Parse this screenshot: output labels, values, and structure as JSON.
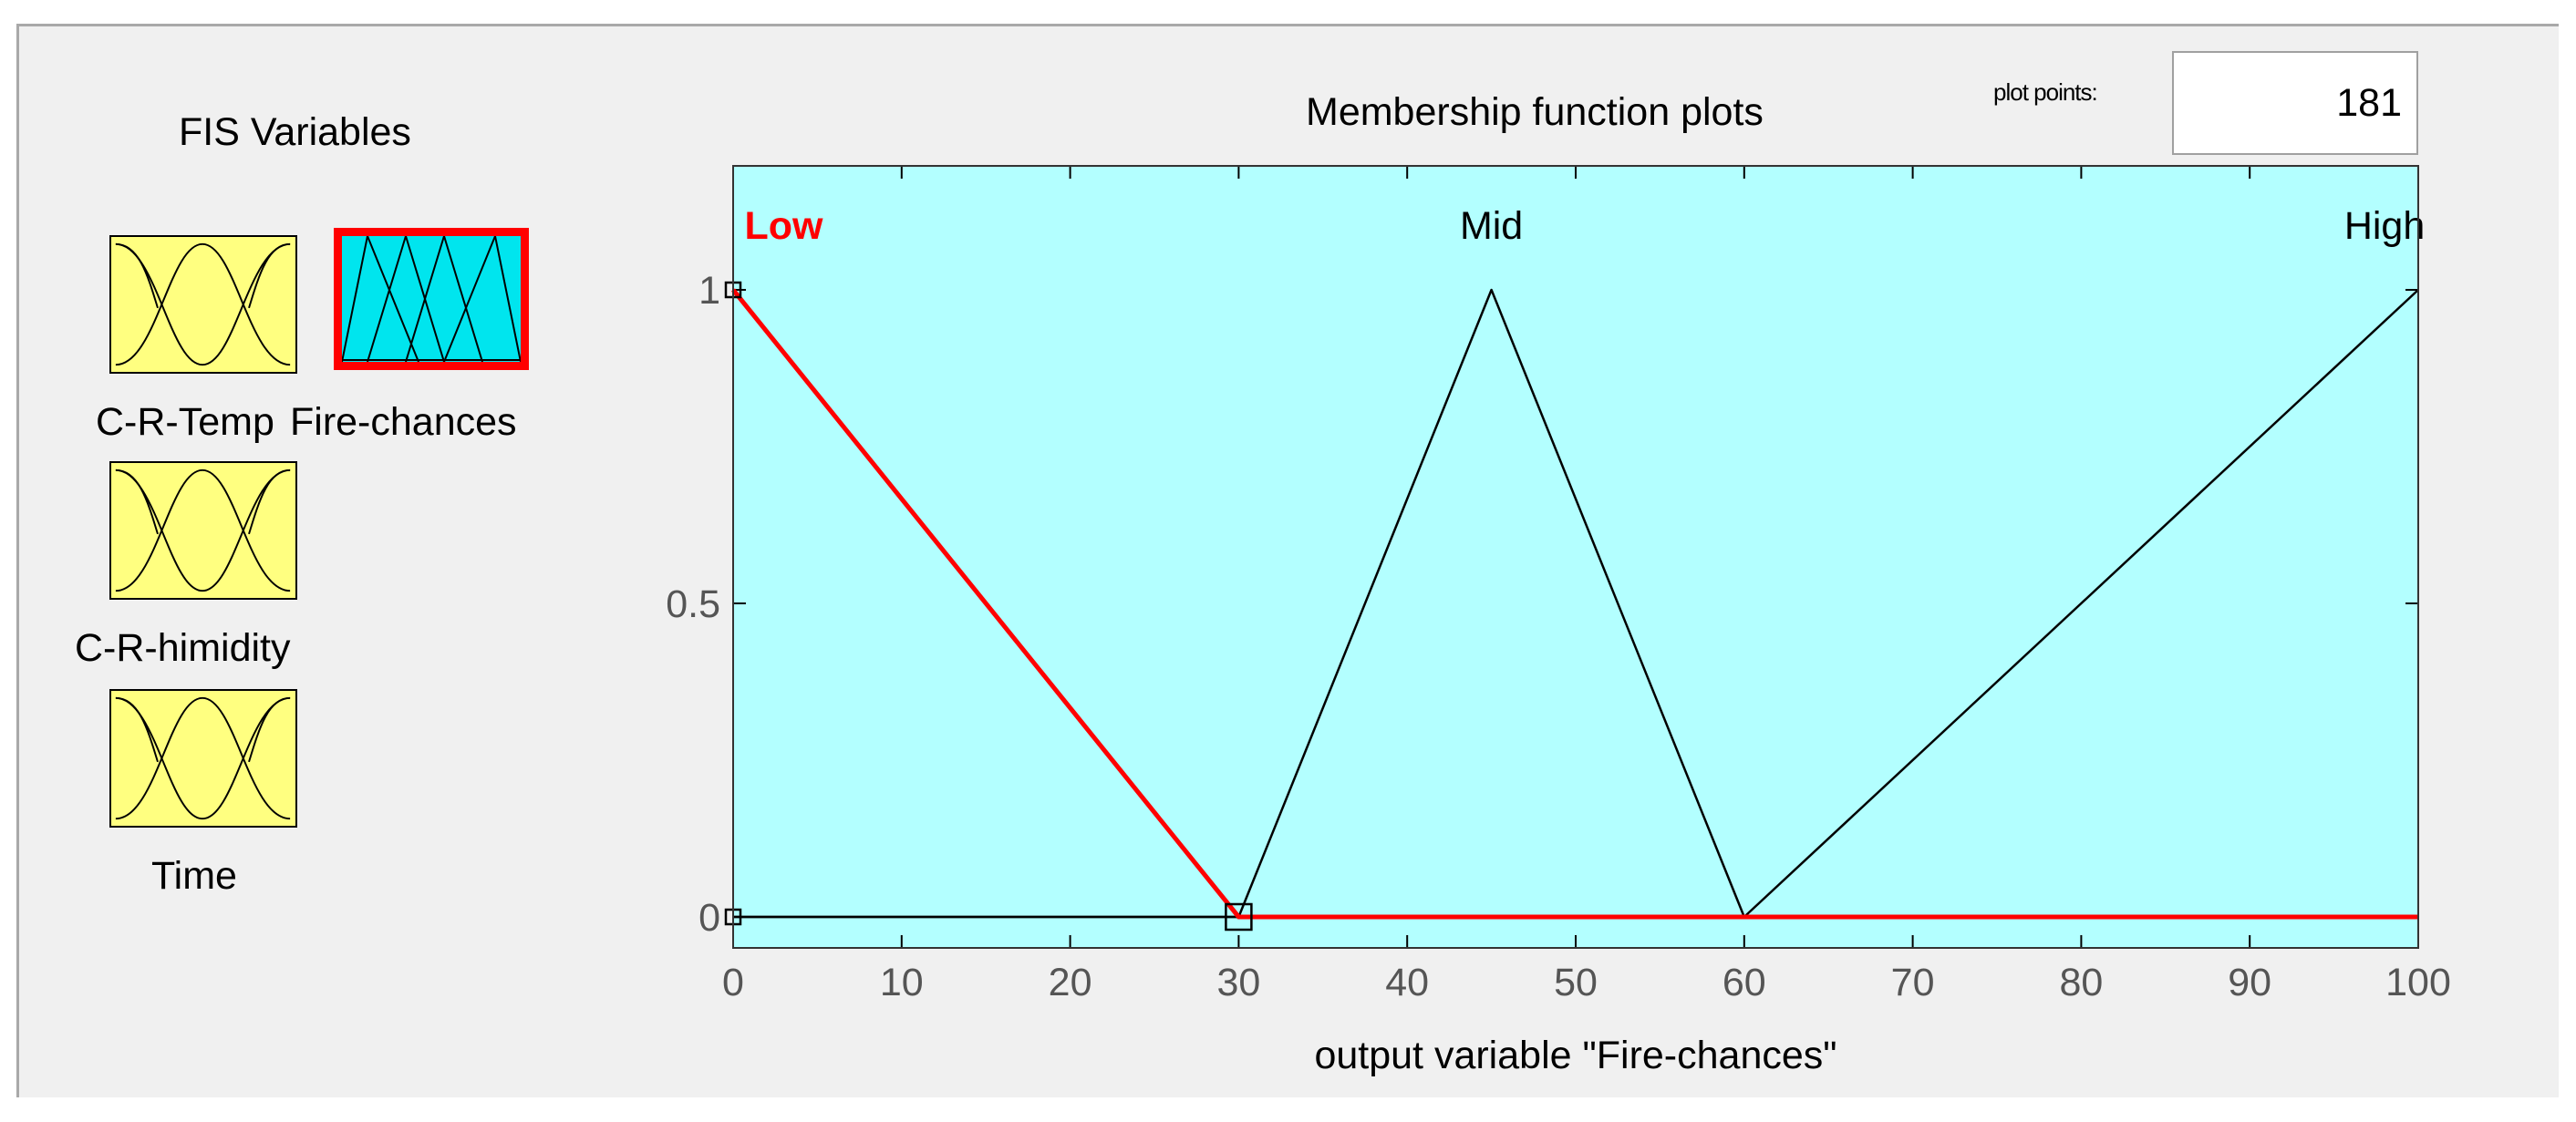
{
  "panel": {
    "fis_title": "FIS Variables",
    "variables": [
      {
        "label": "C-R-Temp",
        "icon": "membership-functions-icon",
        "selected": false,
        "color": "#ffff80"
      },
      {
        "label": "Fire-chances",
        "icon": "membership-functions-icon",
        "selected": true,
        "color": "#00e5ee"
      },
      {
        "label": "C-R-himidity",
        "icon": "membership-functions-icon",
        "selected": false,
        "color": "#ffff80"
      },
      {
        "label": "Time",
        "icon": "membership-functions-icon",
        "selected": false,
        "color": "#ffff80"
      }
    ]
  },
  "plot": {
    "title": "Membership function plots",
    "plot_points_label": "plot points:",
    "plot_points_value": "181"
  },
  "colors": {
    "plot_background": "#b3ffff",
    "selected_mf": "#ff0000",
    "mf_line": "#000000",
    "input_mf_button": "#ffff80",
    "output_mf_button": "#00e5ee"
  },
  "chart_data": {
    "type": "line",
    "xlabel": "output variable \"Fire-chances\"",
    "ylabel": "",
    "xlim": [
      0,
      100
    ],
    "ylim": [
      0,
      1
    ],
    "x_ticks": [
      0,
      10,
      20,
      30,
      40,
      50,
      60,
      70,
      80,
      90,
      100
    ],
    "y_ticks": [
      0,
      0.5,
      1
    ],
    "grid": false,
    "series": [
      {
        "name": "Low",
        "x": [
          0,
          30,
          100
        ],
        "y": [
          1,
          0,
          0
        ],
        "selected": true
      },
      {
        "name": "Mid",
        "x": [
          0,
          30,
          45,
          60,
          100
        ],
        "y": [
          0,
          0,
          1,
          0,
          0
        ],
        "selected": false
      },
      {
        "name": "High",
        "x": [
          0,
          60,
          100
        ],
        "y": [
          0,
          0,
          1
        ],
        "selected": false
      }
    ],
    "label_x": [
      3,
      45,
      98
    ]
  }
}
